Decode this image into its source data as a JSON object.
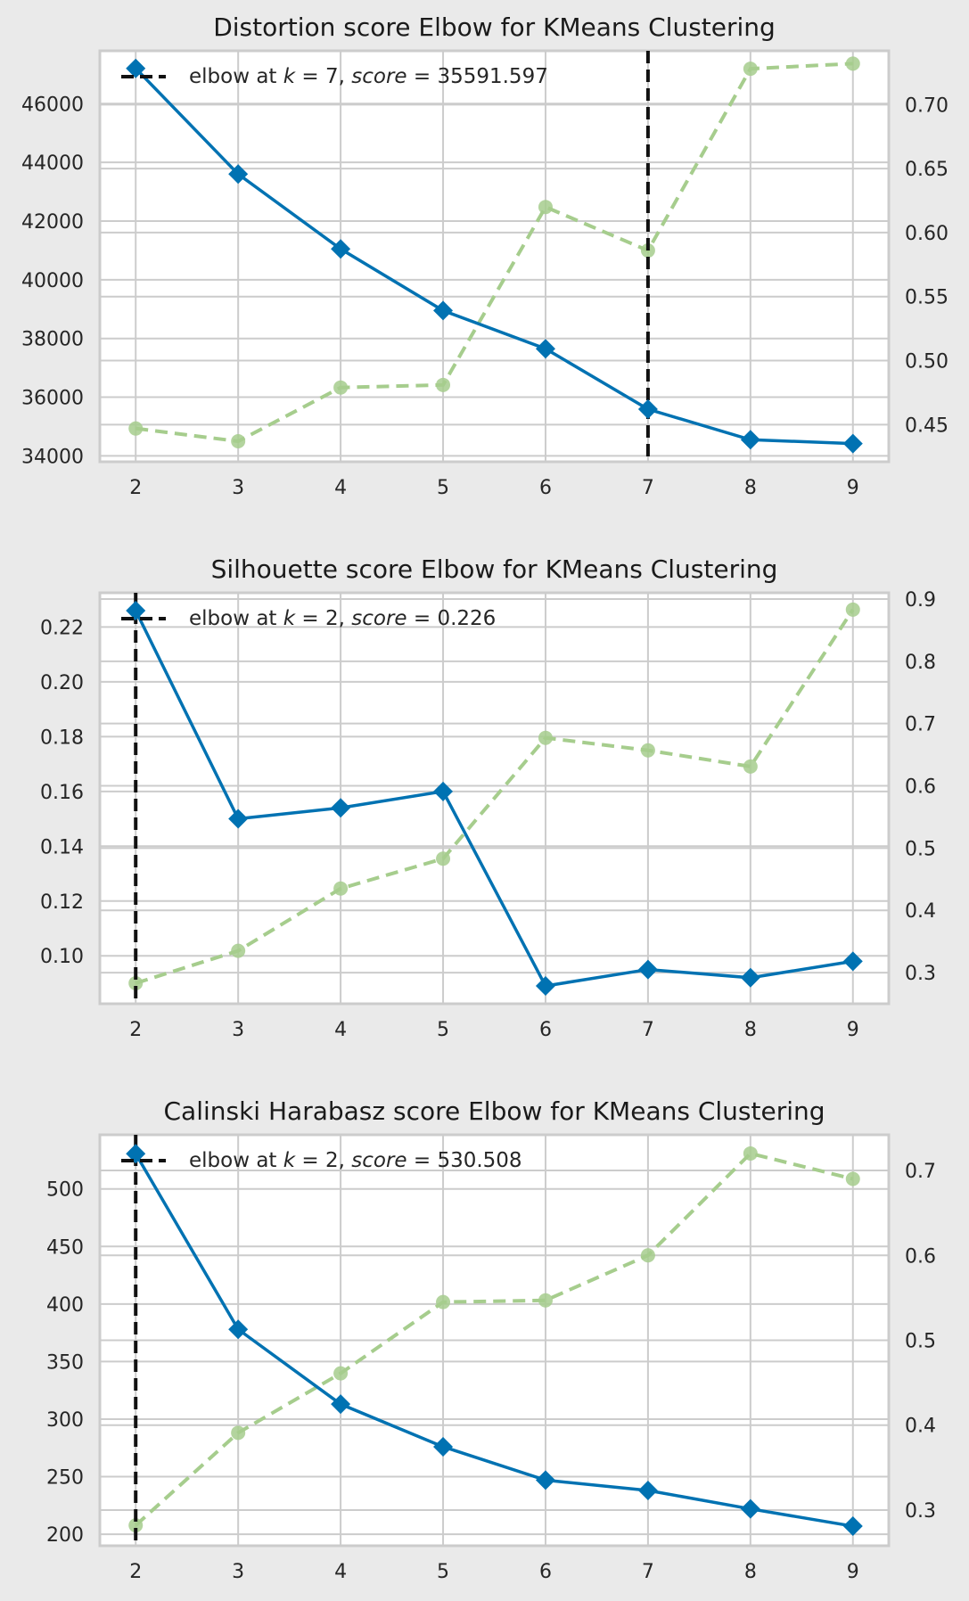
{
  "chart_data": [
    {
      "type": "line",
      "title": "Distortion score Elbow for KMeans Clustering",
      "xlabel": "",
      "ylabel": "",
      "y2label": "",
      "x": [
        2,
        3,
        4,
        5,
        6,
        7,
        8,
        9
      ],
      "xlim": [
        1.65,
        9.35
      ],
      "ylim": [
        33800,
        47800
      ],
      "y2lim": [
        0.421,
        0.742
      ],
      "yticks": [
        {
          "value": 34000,
          "label": "34000"
        },
        {
          "value": 36000,
          "label": "36000"
        },
        {
          "value": 38000,
          "label": "38000"
        },
        {
          "value": 40000,
          "label": "40000"
        },
        {
          "value": 42000,
          "label": "42000"
        },
        {
          "value": 44000,
          "label": "44000"
        },
        {
          "value": 46000,
          "label": "46000"
        }
      ],
      "y2ticks": [
        {
          "value": 0.45,
          "label": "0.45"
        },
        {
          "value": 0.5,
          "label": "0.50"
        },
        {
          "value": 0.55,
          "label": "0.55"
        },
        {
          "value": 0.6,
          "label": "0.60"
        },
        {
          "value": 0.65,
          "label": "0.65"
        },
        {
          "value": 0.7,
          "label": "0.70"
        }
      ],
      "series": [
        {
          "axis": "primary",
          "color": "#0072b2",
          "marker": "diamond",
          "style": "solid",
          "values": [
            47200,
            43600,
            41050,
            38950,
            37650,
            35591.597,
            34550,
            34420
          ]
        },
        {
          "axis": "secondary",
          "color": "#a6cd8d",
          "marker": "circle",
          "style": "dashed",
          "values": [
            0.447,
            0.437,
            0.479,
            0.481,
            0.62,
            0.586,
            0.728,
            0.732
          ]
        }
      ],
      "elbow": {
        "x": 7,
        "color": "#111111",
        "legend": {
          "prefix": "elbow at ",
          "k_var": "k",
          "k_eq": " = 7, ",
          "score_var": "score",
          "score_eq": " = 35591.597"
        }
      },
      "grid": true,
      "legend_position": "top-left"
    },
    {
      "type": "line",
      "title": "Silhouette score Elbow for KMeans Clustering",
      "xlabel": "",
      "ylabel": "",
      "y2label": "",
      "x": [
        2,
        3,
        4,
        5,
        6,
        7,
        8,
        9
      ],
      "xlim": [
        1.65,
        9.35
      ],
      "ylim": [
        0.0825,
        0.2325
      ],
      "y2lim": [
        0.25,
        0.91
      ],
      "yticks": [
        {
          "value": 0.1,
          "label": "0.10"
        },
        {
          "value": 0.12,
          "label": "0.12"
        },
        {
          "value": 0.14,
          "label": "0.14"
        },
        {
          "value": 0.16,
          "label": "0.16"
        },
        {
          "value": 0.18,
          "label": "0.18"
        },
        {
          "value": 0.2,
          "label": "0.20"
        },
        {
          "value": 0.22,
          "label": "0.22"
        }
      ],
      "y2ticks": [
        {
          "value": 0.3,
          "label": "0.3"
        },
        {
          "value": 0.4,
          "label": "0.4"
        },
        {
          "value": 0.5,
          "label": "0.5"
        },
        {
          "value": 0.6,
          "label": "0.6"
        },
        {
          "value": 0.7,
          "label": "0.7"
        },
        {
          "value": 0.8,
          "label": "0.8"
        },
        {
          "value": 0.9,
          "label": "0.9"
        }
      ],
      "series": [
        {
          "axis": "primary",
          "color": "#0072b2",
          "marker": "diamond",
          "style": "solid",
          "values": [
            0.226,
            0.15,
            0.154,
            0.16,
            0.089,
            0.095,
            0.092,
            0.098
          ]
        },
        {
          "axis": "secondary",
          "color": "#a6cd8d",
          "marker": "circle",
          "style": "dashed",
          "values": [
            0.283,
            0.335,
            0.435,
            0.483,
            0.677,
            0.657,
            0.631,
            0.883
          ]
        }
      ],
      "elbow": {
        "x": 2,
        "color": "#111111",
        "legend": {
          "prefix": "elbow at ",
          "k_var": "k",
          "k_eq": " = 2, ",
          "score_var": "score",
          "score_eq": " = 0.226"
        }
      },
      "grid": true,
      "legend_position": "top-left"
    },
    {
      "type": "line",
      "title": "Calinski Harabasz score Elbow for KMeans Clustering",
      "xlabel": "",
      "ylabel": "",
      "y2label": "",
      "x": [
        2,
        3,
        4,
        5,
        6,
        7,
        8,
        9
      ],
      "xlim": [
        1.65,
        9.35
      ],
      "ylim": [
        190,
        547
      ],
      "y2lim": [
        0.258,
        0.742
      ],
      "yticks": [
        {
          "value": 200,
          "label": "200"
        },
        {
          "value": 250,
          "label": "250"
        },
        {
          "value": 300,
          "label": "300"
        },
        {
          "value": 350,
          "label": "350"
        },
        {
          "value": 400,
          "label": "400"
        },
        {
          "value": 450,
          "label": "450"
        },
        {
          "value": 500,
          "label": "500"
        }
      ],
      "y2ticks": [
        {
          "value": 0.3,
          "label": "0.3"
        },
        {
          "value": 0.4,
          "label": "0.4"
        },
        {
          "value": 0.5,
          "label": "0.5"
        },
        {
          "value": 0.6,
          "label": "0.6"
        },
        {
          "value": 0.7,
          "label": "0.7"
        }
      ],
      "series": [
        {
          "axis": "primary",
          "color": "#0072b2",
          "marker": "diamond",
          "style": "solid",
          "values": [
            530.508,
            378,
            313,
            276,
            247,
            238,
            222,
            207
          ]
        },
        {
          "axis": "secondary",
          "color": "#a6cd8d",
          "marker": "circle",
          "style": "dashed",
          "values": [
            0.282,
            0.391,
            0.461,
            0.545,
            0.547,
            0.6,
            0.72,
            0.69
          ]
        }
      ],
      "elbow": {
        "x": 2,
        "color": "#111111",
        "legend": {
          "prefix": "elbow at ",
          "k_var": "k",
          "k_eq": " = 2, ",
          "score_var": "score",
          "score_eq": " = 530.508"
        }
      },
      "grid": true,
      "legend_position": "top-left"
    }
  ]
}
